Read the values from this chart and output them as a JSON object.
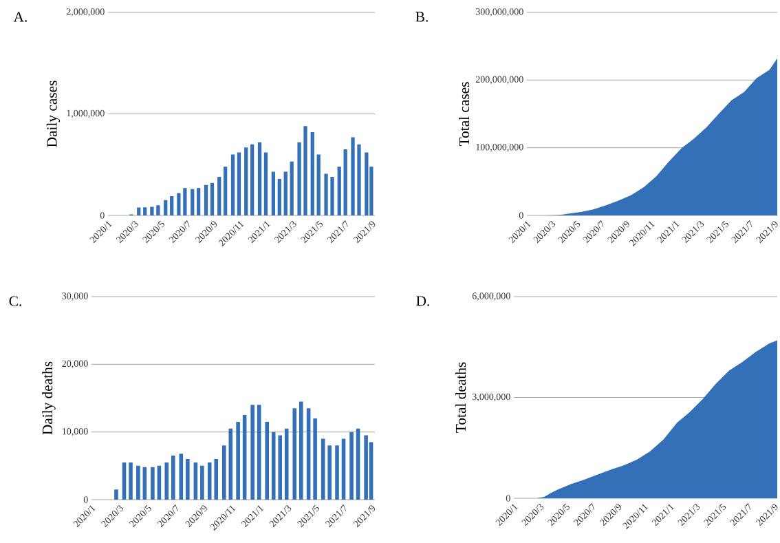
{
  "chart_data": [
    {
      "type": "bar",
      "title": "A.",
      "ylabel": "Daily cases",
      "grid": "y",
      "color": "#3470b8",
      "x": [
        "2020-02-01",
        "2020-02-15",
        "2020-03-01",
        "2020-03-15",
        "2020-04-01",
        "2020-04-15",
        "2020-05-01",
        "2020-05-15",
        "2020-06-01",
        "2020-06-15",
        "2020-07-01",
        "2020-07-15",
        "2020-08-01",
        "2020-08-15",
        "2020-09-01",
        "2020-09-15",
        "2020-10-01",
        "2020-10-15",
        "2020-11-01",
        "2020-11-15",
        "2020-12-01",
        "2020-12-15",
        "2021-01-01",
        "2021-01-15",
        "2021-02-01",
        "2021-02-15",
        "2021-03-01",
        "2021-03-15",
        "2021-04-01",
        "2021-04-15",
        "2021-05-01",
        "2021-05-15",
        "2021-06-01",
        "2021-06-15",
        "2021-07-01",
        "2021-07-15",
        "2021-08-01",
        "2021-08-15",
        "2021-09-01",
        "2021-09-12"
      ],
      "values": [
        0,
        0,
        0,
        10000,
        78000,
        80000,
        85000,
        100000,
        150000,
        190000,
        220000,
        270000,
        260000,
        270000,
        300000,
        320000,
        380000,
        480000,
        600000,
        620000,
        670000,
        700000,
        720000,
        620000,
        430000,
        360000,
        430000,
        530000,
        720000,
        880000,
        820000,
        600000,
        410000,
        380000,
        480000,
        650000,
        770000,
        700000,
        620000,
        480000
      ],
      "xlim": [
        "2020-01-22",
        "2021-09-20"
      ],
      "ylim": [
        0,
        2000000
      ],
      "yticks": [
        0,
        {
          "value": 1000000,
          "label": "1,000,000"
        },
        {
          "value": 2000000,
          "label": "2,000,000"
        }
      ],
      "xticks": [
        {
          "value": "2020-01-22",
          "label": "2020/1"
        },
        {
          "value": "2020-03-22",
          "label": "2020/3"
        },
        {
          "value": "2020-05-21",
          "label": "2020/5"
        },
        {
          "value": "2020-07-20",
          "label": "2020/7"
        },
        {
          "value": "2020-09-18",
          "label": "2020/9"
        },
        {
          "value": "2020-11-17",
          "label": "2020/11"
        },
        {
          "value": "2021-01-16",
          "label": "2021/1"
        },
        {
          "value": "2021-03-17",
          "label": "2021/3"
        },
        {
          "value": "2021-05-16",
          "label": "2021/5"
        },
        {
          "value": "2021-07-15",
          "label": "2021/7"
        },
        {
          "value": "2021-09-13",
          "label": "2021/9"
        }
      ]
    },
    {
      "type": "area",
      "title": "B.",
      "ylabel": "Total cases",
      "grid": "y",
      "color": "#3470b8",
      "x": [
        "2020-01-22",
        "2020-03-01",
        "2020-04-01",
        "2020-04-15",
        "2020-05-01",
        "2020-06-01",
        "2020-07-01",
        "2020-08-01",
        "2020-09-01",
        "2020-10-01",
        "2020-11-01",
        "2020-12-01",
        "2021-01-01",
        "2021-02-01",
        "2021-03-01",
        "2021-04-01",
        "2021-05-01",
        "2021-06-01",
        "2021-07-01",
        "2021-08-01",
        "2021-09-01",
        "2021-09-20"
      ],
      "values": [
        0,
        0,
        500000,
        1000000,
        2500000,
        5000000,
        9000000,
        15000000,
        22000000,
        30000000,
        42000000,
        58000000,
        80000000,
        100000000,
        113000000,
        130000000,
        150000000,
        170000000,
        182000000,
        203000000,
        215000000,
        232000000
      ],
      "xlim": [
        "2020-01-22",
        "2021-09-20"
      ],
      "ylim": [
        0,
        300000000
      ],
      "yticks": [
        0,
        {
          "value": 100000000,
          "label": "100,000,000"
        },
        {
          "value": 200000000,
          "label": "200,000,000"
        },
        {
          "value": 300000000,
          "label": "300,000,000"
        }
      ],
      "xticks": [
        {
          "value": "2020-01-22",
          "label": "2020/1"
        },
        {
          "value": "2020-03-22",
          "label": "2020/3"
        },
        {
          "value": "2020-05-21",
          "label": "2020/5"
        },
        {
          "value": "2020-07-20",
          "label": "2020/7"
        },
        {
          "value": "2020-09-18",
          "label": "2020/9"
        },
        {
          "value": "2020-11-17",
          "label": "2020/11"
        },
        {
          "value": "2021-01-16",
          "label": "2021/1"
        },
        {
          "value": "2021-03-17",
          "label": "2021/3"
        },
        {
          "value": "2021-05-16",
          "label": "2021/5"
        },
        {
          "value": "2021-07-15",
          "label": "2021/7"
        },
        {
          "value": "2021-09-13",
          "label": "2021/9"
        }
      ]
    },
    {
      "type": "bar",
      "title": "C.",
      "ylabel": "Daily deaths",
      "grid": "y",
      "color": "#3470b8",
      "x": [
        "2020-02-01",
        "2020-02-15",
        "2020-03-01",
        "2020-03-15",
        "2020-04-01",
        "2020-04-15",
        "2020-05-01",
        "2020-05-15",
        "2020-06-01",
        "2020-06-15",
        "2020-07-01",
        "2020-07-15",
        "2020-08-01",
        "2020-08-15",
        "2020-09-01",
        "2020-09-15",
        "2020-10-01",
        "2020-10-15",
        "2020-11-01",
        "2020-11-15",
        "2020-12-01",
        "2020-12-15",
        "2021-01-01",
        "2021-01-15",
        "2021-02-01",
        "2021-02-15",
        "2021-03-01",
        "2021-03-15",
        "2021-04-01",
        "2021-04-15",
        "2021-05-01",
        "2021-05-15",
        "2021-06-01",
        "2021-06-15",
        "2021-07-01",
        "2021-07-15",
        "2021-08-01",
        "2021-08-15",
        "2021-09-01",
        "2021-09-12"
      ],
      "values": [
        0,
        0,
        0,
        1500,
        5500,
        5500,
        5000,
        4800,
        4800,
        5000,
        5500,
        6500,
        6800,
        6000,
        5500,
        5000,
        5500,
        6000,
        8000,
        10500,
        11500,
        12500,
        14000,
        14000,
        11500,
        10000,
        9500,
        10500,
        13500,
        14500,
        13500,
        12000,
        9000,
        8000,
        8000,
        9000,
        10000,
        10500,
        9500,
        8500
      ],
      "xlim": [
        "2020-01-22",
        "2021-09-20"
      ],
      "ylim": [
        0,
        30000
      ],
      "yticks": [
        0,
        {
          "value": 10000,
          "label": "10,000"
        },
        {
          "value": 20000,
          "label": "20,000"
        },
        {
          "value": 30000,
          "label": "30,000"
        }
      ],
      "xticks": [
        {
          "value": "2020-01-22",
          "label": "2020/1"
        },
        {
          "value": "2020-03-22",
          "label": "2020/3"
        },
        {
          "value": "2020-05-21",
          "label": "2020/5"
        },
        {
          "value": "2020-07-20",
          "label": "2020/7"
        },
        {
          "value": "2020-09-18",
          "label": "2020/9"
        },
        {
          "value": "2020-11-17",
          "label": "2020/11"
        },
        {
          "value": "2021-01-16",
          "label": "2021/1"
        },
        {
          "value": "2021-03-17",
          "label": "2021/3"
        },
        {
          "value": "2021-05-16",
          "label": "2021/5"
        },
        {
          "value": "2021-07-15",
          "label": "2021/7"
        },
        {
          "value": "2021-09-13",
          "label": "2021/9"
        }
      ]
    },
    {
      "type": "area",
      "title": "D.",
      "ylabel": "Total deaths",
      "grid": "y",
      "color": "#3470b8",
      "x": [
        "2020-01-22",
        "2020-03-15",
        "2020-04-01",
        "2020-04-15",
        "2020-05-01",
        "2020-06-01",
        "2020-07-01",
        "2020-08-01",
        "2020-09-01",
        "2020-10-01",
        "2020-11-01",
        "2020-12-01",
        "2021-01-01",
        "2021-02-01",
        "2021-03-01",
        "2021-04-01",
        "2021-05-01",
        "2021-06-01",
        "2021-07-01",
        "2021-08-01",
        "2021-09-01",
        "2021-09-20"
      ],
      "values": [
        0,
        0,
        40000,
        150000,
        250000,
        420000,
        550000,
        700000,
        850000,
        980000,
        1150000,
        1400000,
        1750000,
        2250000,
        2550000,
        2950000,
        3400000,
        3800000,
        4050000,
        4350000,
        4600000,
        4700000
      ],
      "xlim": [
        "2020-01-22",
        "2021-09-20"
      ],
      "ylim": [
        0,
        6000000
      ],
      "yticks": [
        0,
        {
          "value": 3000000,
          "label": "3,000,000"
        },
        {
          "value": 6000000,
          "label": "6,000,000"
        }
      ],
      "xticks": [
        {
          "value": "2020-01-22",
          "label": "2020/1"
        },
        {
          "value": "2020-03-22",
          "label": "2020/3"
        },
        {
          "value": "2020-05-21",
          "label": "2020/5"
        },
        {
          "value": "2020-07-20",
          "label": "2020/7"
        },
        {
          "value": "2020-09-18",
          "label": "2020/9"
        },
        {
          "value": "2020-11-17",
          "label": "2020/11"
        },
        {
          "value": "2021-01-16",
          "label": "2021/1"
        },
        {
          "value": "2021-03-17",
          "label": "2021/3"
        },
        {
          "value": "2021-05-16",
          "label": "2021/5"
        },
        {
          "value": "2021-07-15",
          "label": "2021/7"
        },
        {
          "value": "2021-09-13",
          "label": "2021/9"
        }
      ]
    }
  ]
}
